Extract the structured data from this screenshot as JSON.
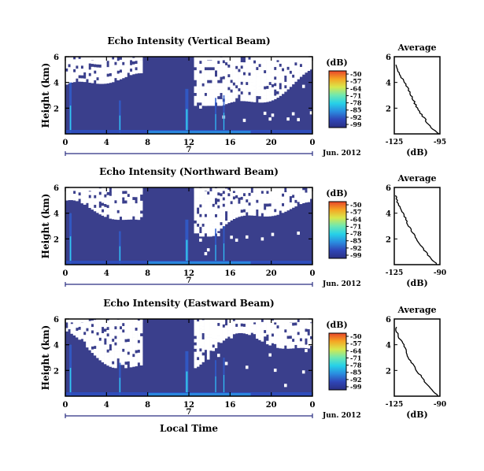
{
  "figure": {
    "xlabel": "Local Time",
    "colorbar_units": "(dB)",
    "colorbar_ticks": [
      "-50",
      "-57",
      "-64",
      "-71",
      "-78",
      "-85",
      "-92",
      "-99"
    ],
    "colorscale": [
      "#2a2f82",
      "#2f46b8",
      "#2a8de0",
      "#26d1e8",
      "#6fe8b0",
      "#d8e84c",
      "#f5a623",
      "#e8452a"
    ],
    "background_color": "#3a3f8c",
    "date_label": "Jun. 2012",
    "day_label": "7",
    "time_ticks": [
      "0",
      "4",
      "8",
      "12",
      "16",
      "20",
      "0"
    ]
  },
  "chart_data": [
    {
      "type": "heatmap",
      "title": "Echo Intensity (Vertical Beam)",
      "ylabel": "Height (km)",
      "x_range_hours": [
        0,
        24
      ],
      "ylim": [
        0,
        6
      ],
      "y_ticks": [
        "6",
        "4",
        "2"
      ],
      "clim": [
        -99,
        -50
      ],
      "profile": {
        "title": "Average",
        "xlabel": "(dB)",
        "x_ticks": [
          "-125",
          "-95"
        ],
        "xlim": [
          -125,
          -95
        ],
        "y_ticks": [
          "6",
          "4",
          "2"
        ],
        "ylim": [
          0,
          6
        ],
        "height_km": [
          0,
          0.5,
          1,
          1.5,
          2,
          2.5,
          3,
          3.5,
          4,
          4.5,
          5,
          5.5
        ],
        "intensity_db": [
          -95,
          -101,
          -104,
          -107,
          -110,
          -112,
          -114,
          -116,
          -118,
          -121,
          -123,
          -124
        ]
      }
    },
    {
      "type": "heatmap",
      "title": "Echo Intensity (Northward Beam)",
      "ylabel": "Height (km)",
      "x_range_hours": [
        0,
        24
      ],
      "ylim": [
        0,
        6
      ],
      "y_ticks": [
        "6",
        "4",
        "2"
      ],
      "clim": [
        -99,
        -50
      ],
      "profile": {
        "title": "Average",
        "xlabel": "(dB)",
        "x_ticks": [
          "-125",
          "-90"
        ],
        "xlim": [
          -125,
          -90
        ],
        "y_ticks": [
          "6",
          "4",
          "2"
        ],
        "ylim": [
          0,
          6
        ],
        "height_km": [
          0,
          0.5,
          1,
          1.5,
          2,
          2.5,
          3,
          3.5,
          4,
          4.5,
          5,
          5.5
        ],
        "intensity_db": [
          -92,
          -97,
          -101,
          -105,
          -108,
          -111,
          -114,
          -116,
          -118,
          -121,
          -123,
          -124
        ]
      }
    },
    {
      "type": "heatmap",
      "title": "Echo Intensity (Eastward Beam)",
      "ylabel": "Height (km)",
      "x_range_hours": [
        0,
        24
      ],
      "ylim": [
        0,
        6
      ],
      "y_ticks": [
        "6",
        "4",
        "2"
      ],
      "clim": [
        -99,
        -50
      ],
      "profile": {
        "title": "Average",
        "xlabel": "(dB)",
        "x_ticks": [
          "-125",
          "-90"
        ],
        "xlim": [
          -125,
          -90
        ],
        "y_ticks": [
          "6",
          "4",
          "2"
        ],
        "ylim": [
          0,
          6
        ],
        "height_km": [
          0,
          0.5,
          1,
          1.5,
          2,
          2.5,
          3,
          3.5,
          4,
          4.5,
          5,
          5.5
        ],
        "intensity_db": [
          -91,
          -96,
          -101,
          -104,
          -108,
          -111,
          -114,
          -116,
          -118,
          -121,
          -123,
          -124
        ]
      }
    }
  ]
}
